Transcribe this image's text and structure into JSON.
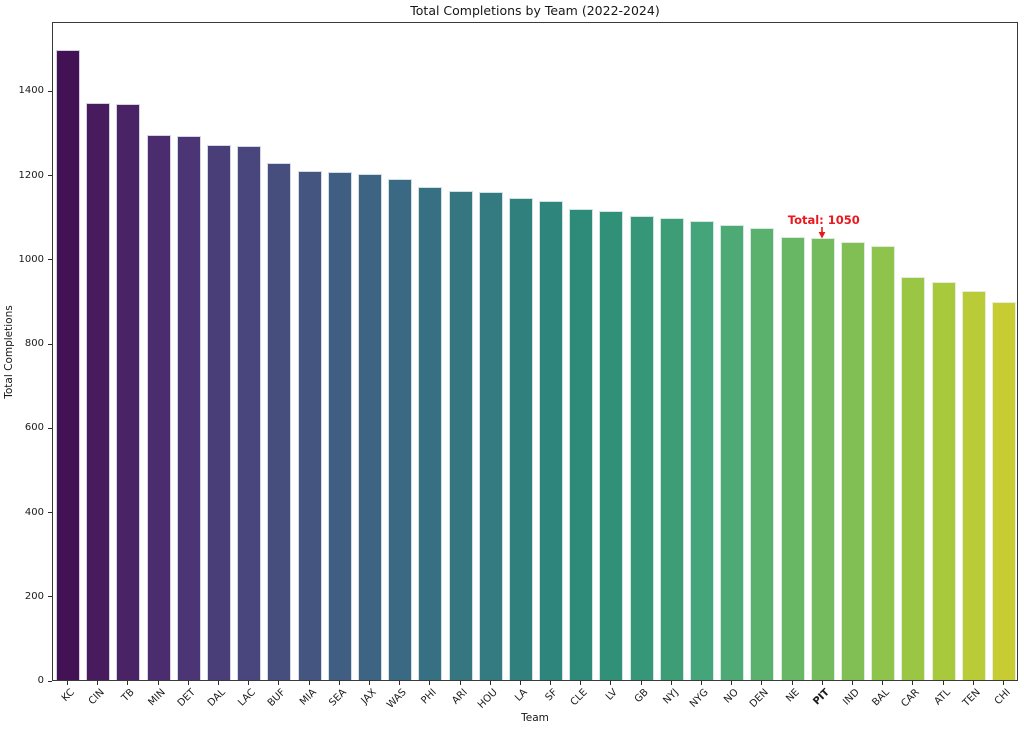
{
  "chart_data": {
    "type": "bar",
    "title": "Total Completions by Team (2022-2024)",
    "xlabel": "Team",
    "ylabel": "Total Completions",
    "ylim": [
      0,
      1565
    ],
    "grid": false,
    "legend": null,
    "y_ticks": [
      0,
      200,
      400,
      600,
      800,
      1000,
      1200,
      1400
    ],
    "categories": [
      "KC",
      "CIN",
      "TB",
      "MIN",
      "DET",
      "DAL",
      "LAC",
      "BUF",
      "MIA",
      "SEA",
      "JAX",
      "WAS",
      "PHI",
      "ARI",
      "HOU",
      "LA",
      "SF",
      "CLE",
      "LV",
      "GB",
      "NYJ",
      "NYG",
      "NO",
      "DEN",
      "NE",
      "PIT",
      "IND",
      "BAL",
      "CAR",
      "ATL",
      "TEN",
      "CHI"
    ],
    "values": [
      1495,
      1370,
      1368,
      1294,
      1292,
      1271,
      1269,
      1229,
      1210,
      1207,
      1201,
      1191,
      1170,
      1162,
      1158,
      1144,
      1137,
      1118,
      1114,
      1101,
      1097,
      1091,
      1081,
      1073,
      1051,
      1050,
      1041,
      1031,
      957,
      946,
      924,
      897
    ],
    "bar_colors": [
      "#431254",
      "#471b5e",
      "#4a2366",
      "#4b2c6e",
      "#4b3574",
      "#4a3e78",
      "#48467c",
      "#464e7e",
      "#445680",
      "#405d82",
      "#3d6483",
      "#3a6a83",
      "#377083",
      "#357681",
      "#337b80",
      "#30807e",
      "#2e857c",
      "#2e8b7a",
      "#309178",
      "#359777",
      "#3c9d77",
      "#44a47a",
      "#4eaa74",
      "#5ab06d",
      "#67b765",
      "#74bb5d",
      "#81bf55",
      "#8ec34c",
      "#9bc644",
      "#a9c93d",
      "#b9cb37",
      "#c8cc33"
    ],
    "highlighted_category": "PIT",
    "annotation": {
      "text": "Total: 1050",
      "target": "PIT",
      "value": 1050,
      "color": "#e8191f",
      "arrow_icon": "down-arrow"
    }
  }
}
